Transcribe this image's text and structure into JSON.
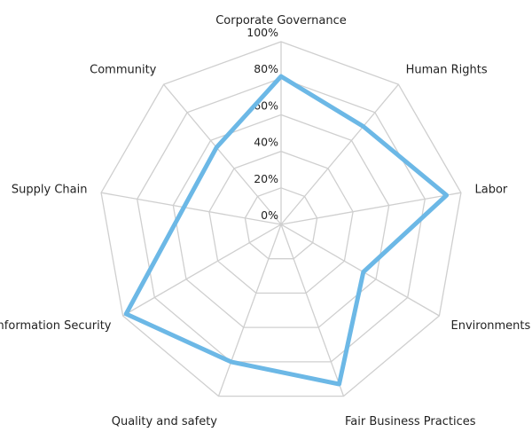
{
  "chart_data": {
    "type": "radar",
    "categories": [
      "Corporate Governance",
      "Human Rights",
      "Labor",
      "Environments",
      "Fair Business Practices",
      "Quality and safety",
      "Information Security",
      "Supply Chain",
      "Community"
    ],
    "series": [
      {
        "values": [
          81,
          70,
          92,
          52,
          93,
          80,
          98,
          54,
          55
        ]
      }
    ],
    "r_ticks": [
      "0%",
      "20%",
      "40%",
      "60%",
      "80%",
      "100%"
    ],
    "r_range": [
      0,
      100
    ],
    "grid": true,
    "legend": "none",
    "colors": {
      "series": "#6cb8e6",
      "grid": "#cfcfcf",
      "text": "#222222"
    }
  }
}
